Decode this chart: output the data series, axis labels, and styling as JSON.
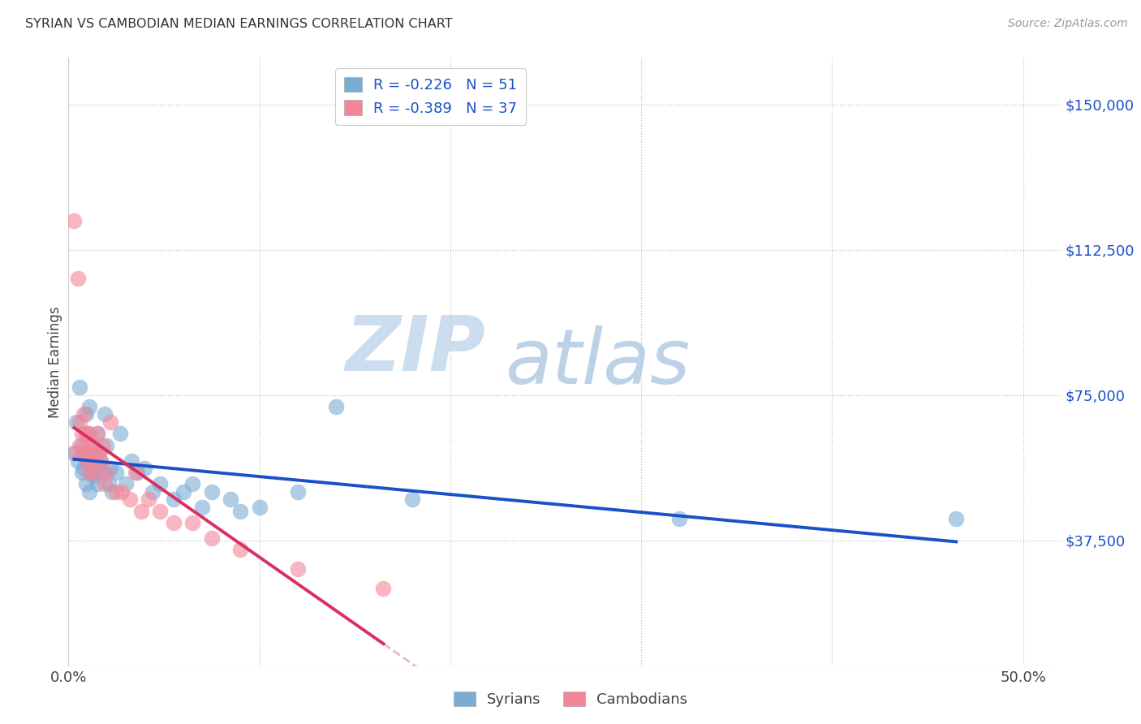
{
  "title": "SYRIAN VS CAMBODIAN MEDIAN EARNINGS CORRELATION CHART",
  "source": "Source: ZipAtlas.com",
  "ylabel": "Median Earnings",
  "ytick_labels": [
    "$37,500",
    "$75,000",
    "$112,500",
    "$150,000"
  ],
  "ytick_values": [
    37500,
    75000,
    112500,
    150000
  ],
  "ylim": [
    5000,
    162000
  ],
  "xlim": [
    0.0,
    0.52
  ],
  "legend_syrian": "R = -0.226   N = 51",
  "legend_cambodian": "R = -0.389   N = 37",
  "legend_label_syrian": "Syrians",
  "legend_label_cambodian": "Cambodians",
  "watermark_zip": "ZIP",
  "watermark_atlas": "atlas",
  "color_syrian": "#7AADD4",
  "color_cambodian": "#F4869A",
  "trendline_syrian_color": "#1A50C8",
  "trendline_cambodian_color": "#D93060",
  "trendline_cambodian_ext_color": "#E8BBCC",
  "background_color": "#FFFFFF",
  "syrians_x": [
    0.003,
    0.004,
    0.005,
    0.006,
    0.007,
    0.007,
    0.008,
    0.008,
    0.009,
    0.009,
    0.01,
    0.01,
    0.011,
    0.011,
    0.012,
    0.012,
    0.013,
    0.013,
    0.014,
    0.015,
    0.015,
    0.016,
    0.016,
    0.017,
    0.018,
    0.019,
    0.02,
    0.021,
    0.022,
    0.023,
    0.025,
    0.027,
    0.03,
    0.033,
    0.036,
    0.04,
    0.044,
    0.048,
    0.055,
    0.06,
    0.065,
    0.07,
    0.075,
    0.085,
    0.09,
    0.1,
    0.12,
    0.14,
    0.18,
    0.32,
    0.465
  ],
  "syrians_y": [
    60000,
    68000,
    58000,
    77000,
    55000,
    62000,
    60000,
    56000,
    70000,
    52000,
    65000,
    58000,
    72000,
    50000,
    60000,
    55000,
    54000,
    62000,
    58000,
    65000,
    52000,
    55000,
    60000,
    58000,
    55000,
    70000,
    62000,
    52000,
    56000,
    50000,
    55000,
    65000,
    52000,
    58000,
    55000,
    56000,
    50000,
    52000,
    48000,
    50000,
    52000,
    46000,
    50000,
    48000,
    45000,
    46000,
    50000,
    72000,
    48000,
    43000,
    43000
  ],
  "cambodians_x": [
    0.003,
    0.004,
    0.005,
    0.006,
    0.006,
    0.007,
    0.008,
    0.008,
    0.009,
    0.009,
    0.01,
    0.011,
    0.011,
    0.012,
    0.012,
    0.013,
    0.014,
    0.015,
    0.016,
    0.017,
    0.018,
    0.019,
    0.02,
    0.022,
    0.025,
    0.028,
    0.032,
    0.035,
    0.038,
    0.042,
    0.048,
    0.055,
    0.065,
    0.075,
    0.09,
    0.12,
    0.165
  ],
  "cambodians_y": [
    120000,
    60000,
    105000,
    62000,
    68000,
    65000,
    60000,
    70000,
    58000,
    65000,
    62000,
    65000,
    55000,
    58000,
    62000,
    60000,
    55000,
    65000,
    60000,
    58000,
    62000,
    52000,
    55000,
    68000,
    50000,
    50000,
    48000,
    55000,
    45000,
    48000,
    45000,
    42000,
    42000,
    38000,
    35000,
    30000,
    25000
  ]
}
